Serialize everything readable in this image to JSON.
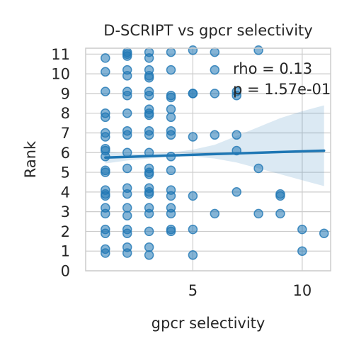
{
  "chart_data": {
    "type": "scatter",
    "title": "D-SCRIPT vs gpcr selectivity",
    "xlabel": "gpcr selectivity",
    "ylabel": "Rank",
    "xlim": [
      0.1,
      11.3
    ],
    "ylim": [
      0,
      11.3
    ],
    "xticks": [
      5,
      10
    ],
    "xtick_labels": [
      "5",
      "10"
    ],
    "yticks": [
      0,
      1,
      2,
      3,
      4,
      5,
      6,
      7,
      8,
      9,
      10,
      11
    ],
    "ytick_labels": [
      "0",
      "1",
      "2",
      "3",
      "4",
      "5",
      "6",
      "7",
      "8",
      "9",
      "10",
      "11"
    ],
    "grid": true,
    "annotations": [
      "rho = 0.13",
      "p = 1.57e-01"
    ],
    "regression": {
      "x": [
        1,
        11
      ],
      "y": [
        5.75,
        6.1
      ]
    },
    "ci_band": {
      "x": [
        1,
        2,
        3,
        4,
        5,
        6,
        7,
        8,
        9,
        10,
        11
      ],
      "lower": [
        5.45,
        5.6,
        5.7,
        5.8,
        5.8,
        5.7,
        5.5,
        5.2,
        4.9,
        4.6,
        4.3
      ],
      "upper": [
        6.05,
        5.95,
        5.95,
        6.0,
        6.15,
        6.4,
        6.85,
        7.3,
        7.75,
        8.1,
        8.4
      ]
    },
    "points": [
      [
        1,
        10.8
      ],
      [
        1,
        10.1
      ],
      [
        1,
        9.1
      ],
      [
        1,
        8.0
      ],
      [
        1,
        7.8
      ],
      [
        1,
        7.0
      ],
      [
        1,
        6.8
      ],
      [
        1,
        6.2
      ],
      [
        1,
        6.1
      ],
      [
        1,
        5.8
      ],
      [
        1,
        5.1
      ],
      [
        1,
        5.0
      ],
      [
        1,
        4.1
      ],
      [
        1,
        3.9
      ],
      [
        1,
        3.8
      ],
      [
        1,
        3.2
      ],
      [
        1,
        2.9
      ],
      [
        1,
        2.1
      ],
      [
        1,
        1.9
      ],
      [
        1,
        1.1
      ],
      [
        1,
        0.9
      ],
      [
        2,
        11.1
      ],
      [
        2,
        11.0
      ],
      [
        2,
        10.9
      ],
      [
        2,
        10.2
      ],
      [
        2,
        9.9
      ],
      [
        2,
        9.1
      ],
      [
        2,
        8.9
      ],
      [
        2,
        8.0
      ],
      [
        2,
        7.1
      ],
      [
        2,
        6.9
      ],
      [
        2,
        6.0
      ],
      [
        2,
        5.2
      ],
      [
        2,
        4.2
      ],
      [
        2,
        3.9
      ],
      [
        2,
        3.2
      ],
      [
        2,
        2.8
      ],
      [
        2,
        2.1
      ],
      [
        2,
        1.9
      ],
      [
        2,
        1.2
      ],
      [
        2,
        0.9
      ],
      [
        3,
        11.1
      ],
      [
        3,
        10.8
      ],
      [
        3,
        10.2
      ],
      [
        3,
        9.9
      ],
      [
        3,
        9.8
      ],
      [
        3,
        9.1
      ],
      [
        3,
        8.9
      ],
      [
        3,
        8.2
      ],
      [
        3,
        8.0
      ],
      [
        3,
        7.9
      ],
      [
        3,
        7.1
      ],
      [
        3,
        6.9
      ],
      [
        3,
        6.0
      ],
      [
        3,
        5.2
      ],
      [
        3,
        5.0
      ],
      [
        3,
        4.9
      ],
      [
        3,
        4.2
      ],
      [
        3,
        4.0
      ],
      [
        3,
        3.9
      ],
      [
        3,
        3.2
      ],
      [
        3,
        2.9
      ],
      [
        3,
        2.0
      ],
      [
        3,
        1.2
      ],
      [
        3,
        0.8
      ],
      [
        4,
        11.1
      ],
      [
        4,
        10.2
      ],
      [
        4,
        8.9
      ],
      [
        4,
        8.8
      ],
      [
        4,
        8.2
      ],
      [
        4,
        7.8
      ],
      [
        4,
        7.1
      ],
      [
        4,
        6.9
      ],
      [
        4,
        5.8
      ],
      [
        4,
        5.1
      ],
      [
        4,
        4.1
      ],
      [
        4,
        3.8
      ],
      [
        4,
        3.2
      ],
      [
        4,
        2.9
      ],
      [
        4,
        2.1
      ],
      [
        4,
        2.0
      ],
      [
        5,
        11.2
      ],
      [
        5,
        9.0
      ],
      [
        5,
        9.0
      ],
      [
        5,
        6.8
      ],
      [
        5,
        3.8
      ],
      [
        5,
        2.1
      ],
      [
        5,
        0.8
      ],
      [
        6,
        11.1
      ],
      [
        6,
        10.2
      ],
      [
        6,
        9.0
      ],
      [
        6,
        6.9
      ],
      [
        6,
        2.9
      ],
      [
        7,
        9.1
      ],
      [
        7,
        8.9
      ],
      [
        7,
        6.9
      ],
      [
        7,
        6.1
      ],
      [
        7,
        4.0
      ],
      [
        8,
        11.2
      ],
      [
        8,
        5.2
      ],
      [
        8,
        2.9
      ],
      [
        9,
        3.9
      ],
      [
        9,
        3.8
      ],
      [
        9,
        2.9
      ],
      [
        10,
        2.1
      ],
      [
        10,
        1.0
      ],
      [
        11,
        1.9
      ]
    ]
  }
}
